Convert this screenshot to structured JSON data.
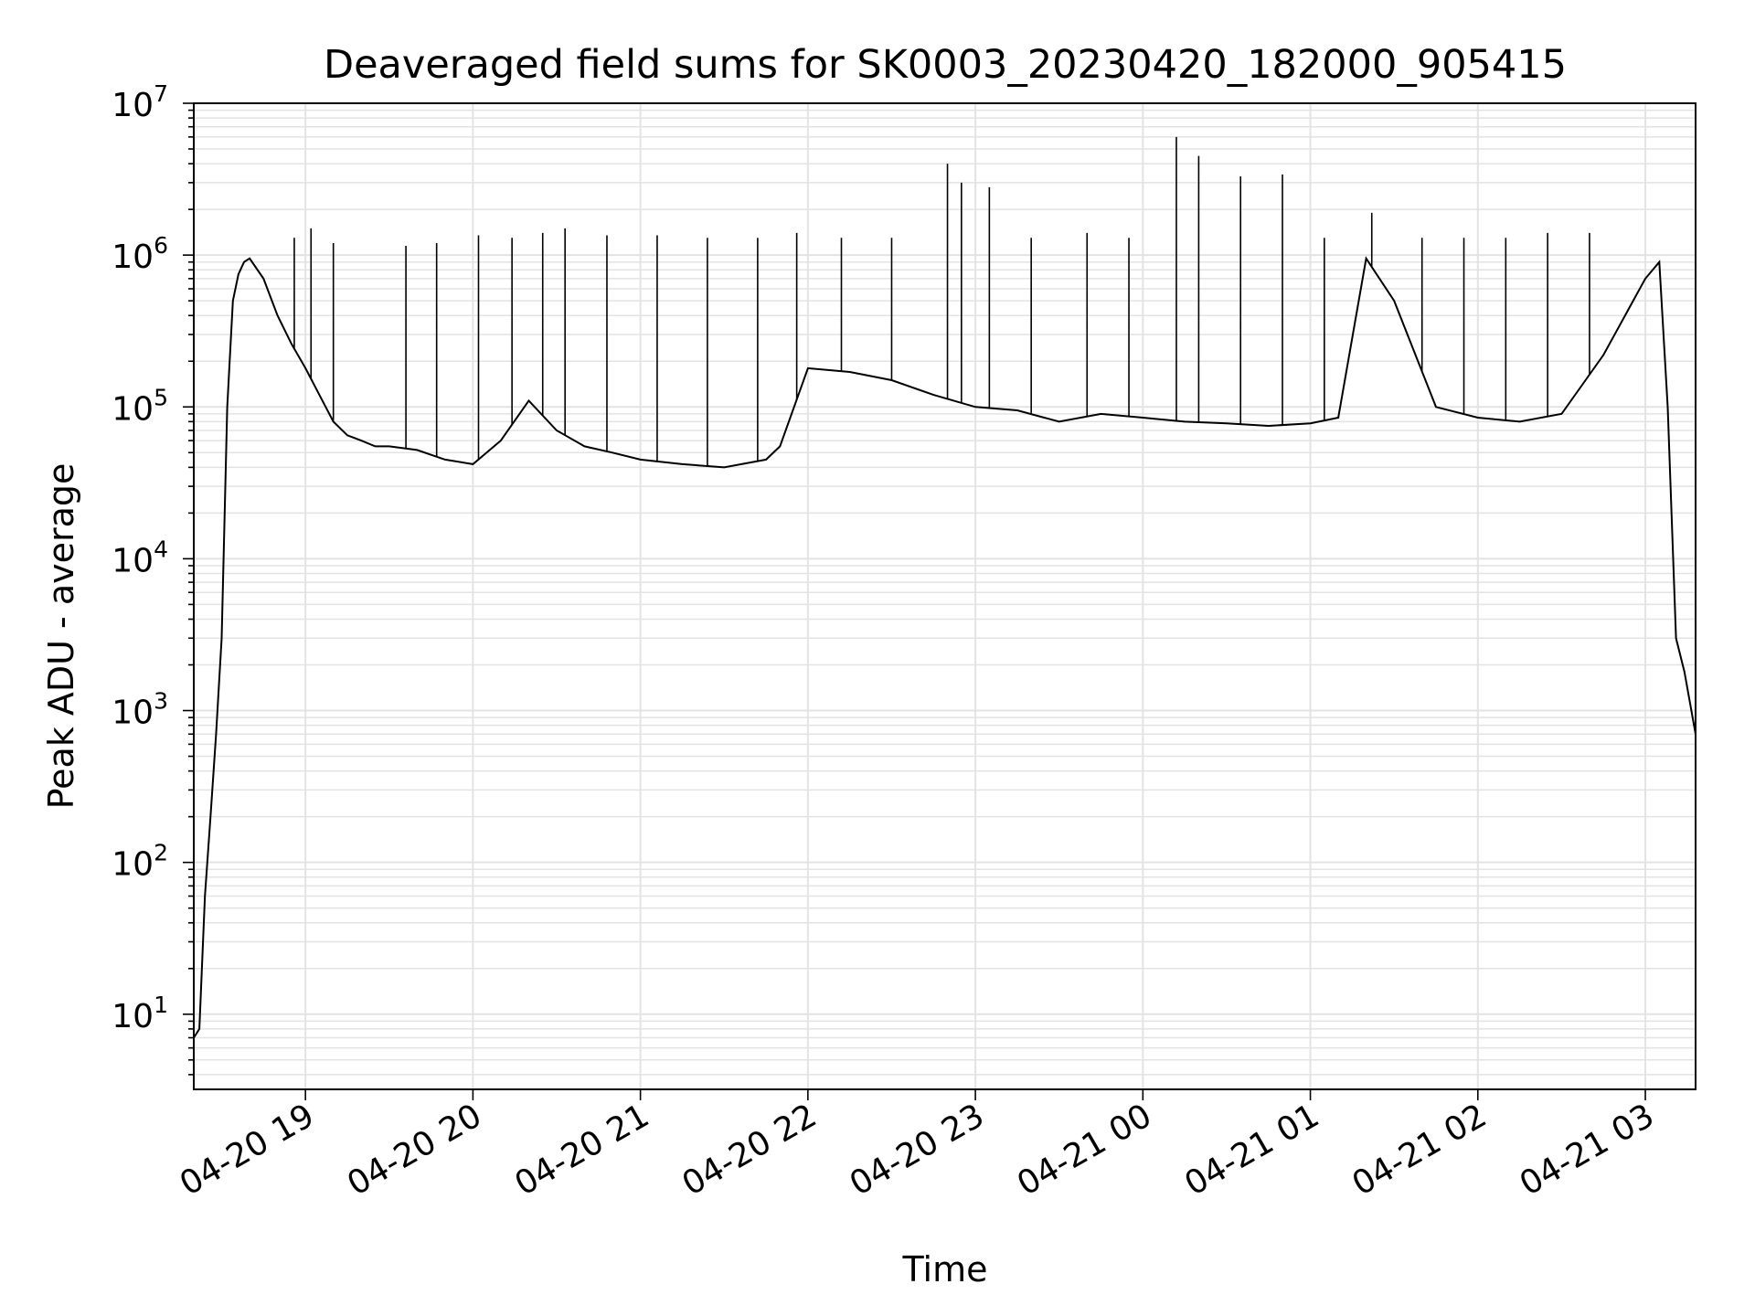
{
  "chart_data": {
    "type": "line",
    "title": "Deaveraged field sums for SK0003_20230420_182000_905415",
    "xlabel": "Time",
    "ylabel": "Peak ADU - average",
    "yscale": "log",
    "ylim": [
      3.2,
      10000000
    ],
    "xlim": [
      "04-20 18:20",
      "04-21 03:18"
    ],
    "x_ticks": [
      "04-20 19",
      "04-20 20",
      "04-20 21",
      "04-20 22",
      "04-20 23",
      "04-21 00",
      "04-21 01",
      "04-21 02",
      "04-21 03"
    ],
    "y_ticks": [
      {
        "base": "10",
        "exp": "1",
        "value": 10
      },
      {
        "base": "10",
        "exp": "2",
        "value": 100
      },
      {
        "base": "10",
        "exp": "3",
        "value": 1000
      },
      {
        "base": "10",
        "exp": "4",
        "value": 10000
      },
      {
        "base": "10",
        "exp": "5",
        "value": 100000
      },
      {
        "base": "10",
        "exp": "6",
        "value": 1000000
      },
      {
        "base": "10",
        "exp": "7",
        "value": 10000000
      }
    ],
    "grid": true,
    "line_color": "#000000",
    "series": [
      {
        "x": [
          "04-20 18:20",
          "04-20 18:22",
          "04-20 18:24",
          "04-20 18:26",
          "04-20 18:28",
          "04-20 18:30",
          "04-20 18:32",
          "04-20 18:34",
          "04-20 18:36",
          "04-20 18:38",
          "04-20 18:40",
          "04-20 18:45",
          "04-20 18:50",
          "04-20 18:55",
          "04-20 19:00",
          "04-20 19:05",
          "04-20 19:10",
          "04-20 19:15",
          "04-20 19:20",
          "04-20 19:25",
          "04-20 19:30",
          "04-20 19:40",
          "04-20 19:50",
          "04-20 20:00",
          "04-20 20:10",
          "04-20 20:20",
          "04-20 20:30",
          "04-20 20:40",
          "04-20 20:50",
          "04-20 21:00",
          "04-20 21:15",
          "04-20 21:30",
          "04-20 21:45",
          "04-20 21:50",
          "04-20 22:00",
          "04-20 22:15",
          "04-20 22:30",
          "04-20 22:45",
          "04-20 23:00",
          "04-20 23:15",
          "04-20 23:30",
          "04-20 23:45",
          "04-21 00:00",
          "04-21 00:15",
          "04-21 00:30",
          "04-21 00:45",
          "04-21 01:00",
          "04-21 01:10",
          "04-21 01:20",
          "04-21 01:30",
          "04-21 01:45",
          "04-21 02:00",
          "04-21 02:15",
          "04-21 02:30",
          "04-21 02:45",
          "04-21 03:00",
          "04-21 03:05",
          "04-21 03:08",
          "04-21 03:11",
          "04-21 03:14",
          "04-21 03:18"
        ],
        "values": [
          7,
          8,
          60,
          200,
          700,
          3000,
          100000,
          500000,
          750000,
          900000,
          950000,
          700000,
          400000,
          260000,
          180000,
          120000,
          80000,
          65000,
          60000,
          55000,
          55000,
          52000,
          45000,
          42000,
          60000,
          110000,
          70000,
          55000,
          50000,
          45000,
          42000,
          40000,
          45000,
          55000,
          180000,
          170000,
          150000,
          120000,
          100000,
          95000,
          80000,
          90000,
          85000,
          80000,
          78000,
          75000,
          78000,
          85000,
          950000,
          500000,
          100000,
          85000,
          80000,
          90000,
          220000,
          700000,
          900000,
          100000,
          3000,
          1800,
          700
        ]
      }
    ],
    "spikes": {
      "x": [
        "04-20 18:56",
        "04-20 19:02",
        "04-20 19:10",
        "04-20 19:36",
        "04-20 19:47",
        "04-20 20:02",
        "04-20 20:14",
        "04-20 20:25",
        "04-20 20:33",
        "04-20 20:48",
        "04-20 21:06",
        "04-20 21:24",
        "04-20 21:42",
        "04-20 21:56",
        "04-20 22:12",
        "04-20 22:30",
        "04-20 22:50",
        "04-20 22:55",
        "04-20 23:05",
        "04-20 23:20",
        "04-20 23:40",
        "04-20 23:55",
        "04-21 00:12",
        "04-21 00:20",
        "04-21 00:35",
        "04-21 00:50",
        "04-21 01:05",
        "04-21 01:22",
        "04-21 01:40",
        "04-21 01:55",
        "04-21 02:10",
        "04-21 02:25",
        "04-21 02:40"
      ],
      "values": [
        1300000,
        1500000,
        1200000,
        1150000,
        1200000,
        1350000,
        1300000,
        1400000,
        1500000,
        1350000,
        1350000,
        1300000,
        1300000,
        1400000,
        1300000,
        1300000,
        4000000,
        3000000,
        2800000,
        1300000,
        1400000,
        1300000,
        6000000,
        4500000,
        3300000,
        3400000,
        1300000,
        1900000,
        1300000,
        1300000,
        1300000,
        1400000,
        1400000
      ]
    }
  }
}
